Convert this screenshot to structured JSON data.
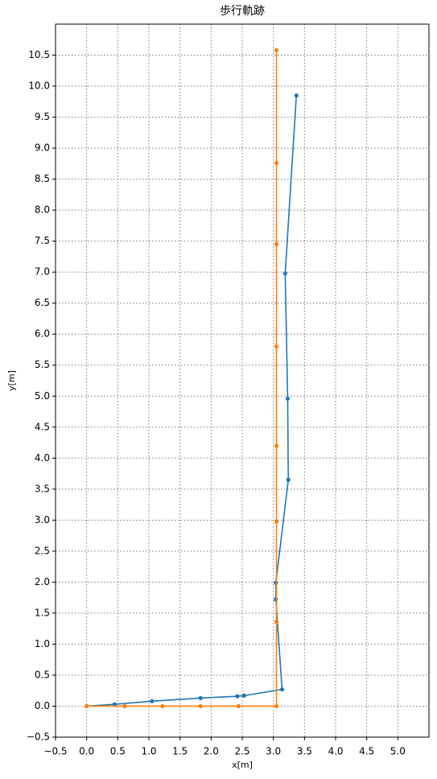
{
  "chart_data": {
    "type": "line",
    "title": "歩行軌跡",
    "x_label": "x[m]",
    "y_label": "y[m]",
    "grid": true,
    "xlim": [
      -0.5,
      5.5
    ],
    "ylim": [
      -0.5,
      11.0
    ],
    "xticks": [
      {
        "value": -0.5,
        "label": "−0.5"
      },
      {
        "value": 0,
        "label": "0.0"
      },
      0.5,
      {
        "value": 1,
        "label": "1.0"
      },
      1.5,
      {
        "value": 2,
        "label": "2.0"
      },
      2.5,
      {
        "value": 3,
        "label": "3.0"
      },
      3.5,
      {
        "value": 4,
        "label": "4.0"
      },
      4.5,
      {
        "value": 5,
        "label": "5.0"
      }
    ],
    "yticks": [
      {
        "value": -0.5,
        "label": "−0.5"
      },
      {
        "value": 0,
        "label": "0.0"
      },
      0.5,
      {
        "value": 1,
        "label": "1.0"
      },
      1.5,
      {
        "value": 2,
        "label": "2.0"
      },
      2.5,
      {
        "value": 3,
        "label": "3.0"
      },
      3.5,
      {
        "value": 4,
        "label": "4.0"
      },
      4.5,
      {
        "value": 5,
        "label": "5.0"
      },
      5.5,
      {
        "value": 6,
        "label": "6.0"
      },
      6.5,
      {
        "value": 7,
        "label": "7.0"
      },
      7.5,
      {
        "value": 8,
        "label": "8.0"
      },
      8.5,
      {
        "value": 9,
        "label": "9.0"
      },
      9.5,
      {
        "value": 10,
        "label": "10.0"
      },
      10.5
    ],
    "series": [
      {
        "color": "#1f77b4",
        "x": [
          0,
          0.45,
          1.05,
          1.83,
          2.42,
          2.53,
          3.14,
          3.04,
          3.04,
          3.24,
          3.23,
          3.19,
          3.37
        ],
        "values": [
          0,
          0.03,
          0.08,
          0.13,
          0.16,
          0.17,
          0.27,
          1.72,
          1.99,
          3.65,
          4.96,
          6.98,
          9.85
        ]
      },
      {
        "color": "#ff7f0e",
        "x": [
          0,
          0.61,
          1.22,
          1.83,
          2.44,
          3.05,
          3.05,
          3.05,
          3.05,
          3.05,
          3.05,
          3.05,
          3.05
        ],
        "values": [
          0,
          0,
          0,
          0,
          0,
          0,
          1.36,
          2.98,
          4.2,
          5.8,
          7.45,
          8.76,
          10.58
        ]
      }
    ]
  }
}
